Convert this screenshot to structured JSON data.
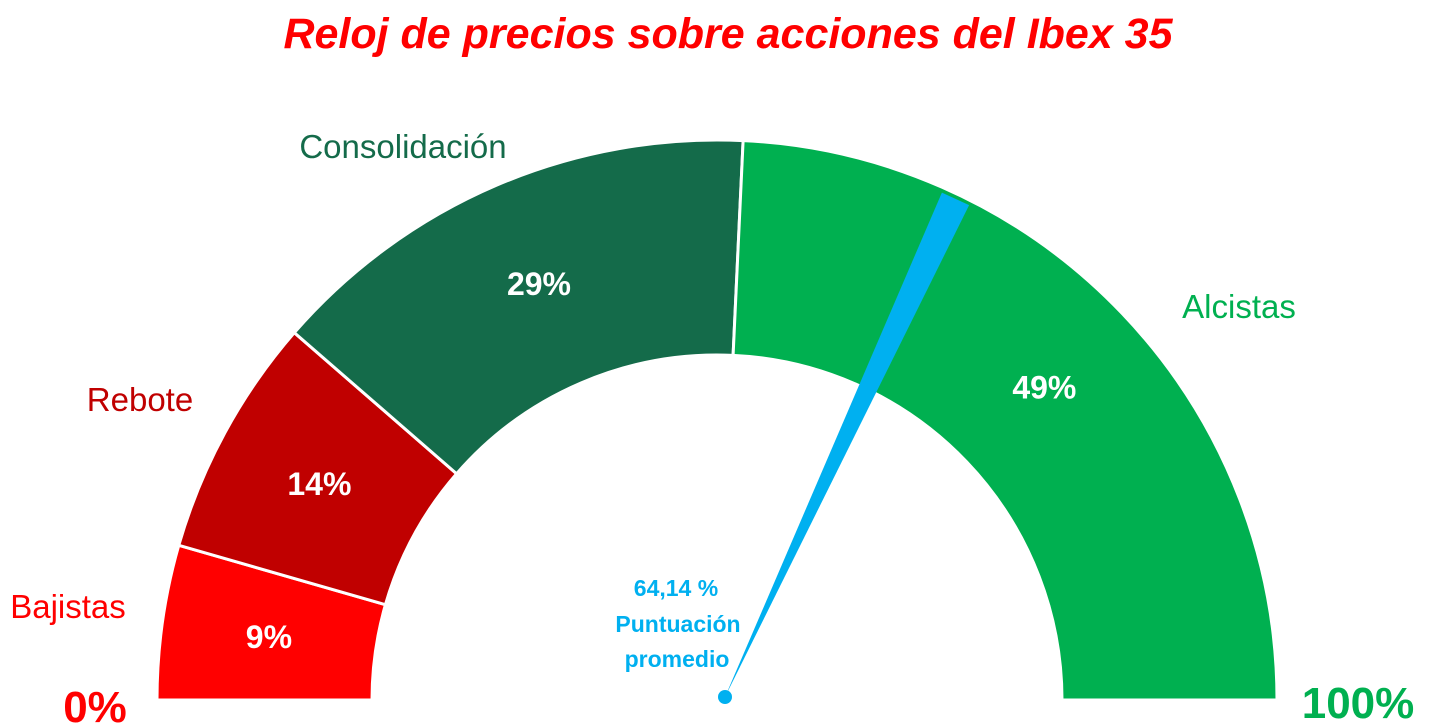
{
  "chart_data": {
    "type": "gauge",
    "title": "Reloj de precios sobre acciones del Ibex 35",
    "range": [
      0,
      100
    ],
    "min_label": "0%",
    "max_label": "100%",
    "segments": [
      {
        "name": "Bajistas",
        "value": 9,
        "value_label": "9%",
        "color": "#ff0000",
        "label_color": "#ff0000"
      },
      {
        "name": "Rebote",
        "value": 14,
        "value_label": "14%",
        "color": "#c00000",
        "label_color": "#c00000"
      },
      {
        "name": "Consolidación",
        "value": 29,
        "value_label": "29%",
        "color": "#146b4a",
        "label_color": "#146b4a"
      },
      {
        "name": "Alcistas",
        "value": 49,
        "value_label": "49%",
        "color": "#00b050",
        "label_color": "#00b050"
      }
    ],
    "needle": {
      "value": 64.14,
      "value_label": "64,14 %",
      "caption_line1": "Puntuación",
      "caption_line2": "promedio",
      "color": "#00b0f0"
    }
  },
  "colors": {
    "title": "#ff0000",
    "min_label": "#ff0000",
    "max_label": "#00b050",
    "separator": "#ffffff",
    "background": "#ffffff"
  }
}
